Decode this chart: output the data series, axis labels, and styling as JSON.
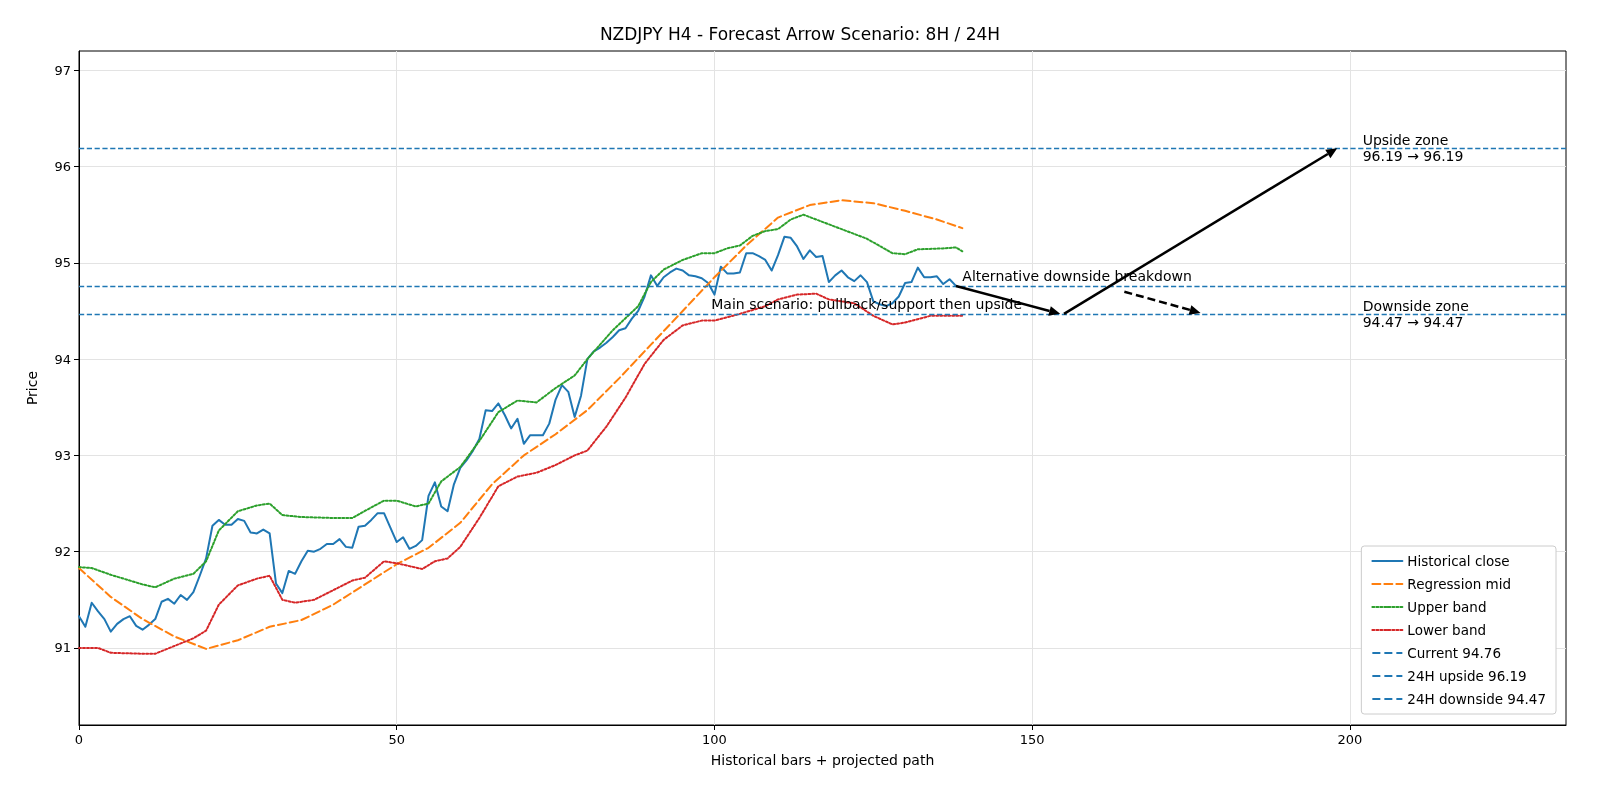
{
  "chart_data": {
    "type": "line",
    "title": "NZDJPY H4 - Forecast Arrow Scenario: 8H / 24H",
    "xlabel": "Historical bars + projected path",
    "ylabel": "Price",
    "xlim": [
      0,
      234
    ],
    "xticks": [
      0,
      50,
      100,
      150,
      200
    ],
    "ylim": [
      90.2,
      97.2
    ],
    "yticks": [
      91,
      92,
      93,
      94,
      95,
      96,
      97
    ],
    "grid": true,
    "legend": "bottom right",
    "marker": "none",
    "series": [
      {
        "name": "Historical close",
        "color": "#1f77b4",
        "line_style": "solid",
        "x": [
          0,
          1,
          2,
          3,
          4,
          5,
          6,
          7,
          8,
          9,
          10,
          11,
          12,
          13,
          14,
          15,
          16,
          17,
          18,
          19,
          20,
          21,
          22,
          23,
          24,
          25,
          26,
          27,
          28,
          29,
          30,
          31,
          32,
          33,
          34,
          35,
          36,
          37,
          38,
          39,
          40,
          41,
          42,
          43,
          44,
          45,
          46,
          47,
          48,
          49,
          50,
          51,
          52,
          53,
          54,
          55,
          56,
          57,
          58,
          59,
          60,
          61,
          62,
          63,
          64,
          65,
          66,
          67,
          68,
          69,
          70,
          71,
          72,
          73,
          74,
          75,
          76,
          77,
          78,
          79,
          80,
          81,
          82,
          83,
          84,
          85,
          86,
          87,
          88,
          89,
          90,
          91,
          92,
          93,
          94,
          95,
          96,
          97,
          98,
          99,
          100,
          101,
          102,
          103,
          104,
          105,
          106,
          107,
          108,
          109,
          110,
          111,
          112,
          113,
          114,
          115,
          116,
          117,
          118,
          119,
          120,
          121,
          122,
          123,
          124,
          125,
          126,
          127,
          128,
          129,
          130,
          131,
          132,
          133,
          134,
          135,
          136,
          137,
          138
        ],
        "values": [
          91.33,
          91.22,
          91.47,
          91.38,
          91.3,
          91.17,
          91.25,
          91.3,
          91.33,
          91.23,
          91.19,
          91.24,
          91.3,
          91.48,
          91.51,
          91.46,
          91.55,
          91.5,
          91.58,
          91.75,
          91.93,
          92.27,
          92.33,
          92.28,
          92.28,
          92.34,
          92.32,
          92.2,
          92.19,
          92.23,
          92.19,
          91.67,
          91.57,
          91.8,
          91.77,
          91.9,
          92.01,
          92.0,
          92.03,
          92.08,
          92.08,
          92.13,
          92.05,
          92.04,
          92.26,
          92.27,
          92.33,
          92.4,
          92.4,
          92.25,
          92.1,
          92.15,
          92.03,
          92.06,
          92.12,
          92.58,
          92.72,
          92.47,
          92.42,
          92.7,
          92.87,
          92.95,
          93.05,
          93.17,
          93.47,
          93.46,
          93.54,
          93.42,
          93.28,
          93.38,
          93.12,
          93.21,
          93.21,
          93.21,
          93.33,
          93.58,
          93.73,
          93.66,
          93.4,
          93.62,
          94.0,
          94.08,
          94.12,
          94.17,
          94.23,
          94.3,
          94.32,
          94.42,
          94.5,
          94.65,
          94.87,
          94.76,
          94.85,
          94.9,
          94.94,
          94.92,
          94.87,
          94.86,
          94.84,
          94.79,
          94.67,
          94.96,
          94.89,
          94.89,
          94.9,
          95.1,
          95.1,
          95.07,
          95.03,
          94.92,
          95.08,
          95.27,
          95.26,
          95.17,
          95.04,
          95.13,
          95.06,
          95.07,
          94.8,
          94.87,
          94.92,
          94.85,
          94.81,
          94.87,
          94.8,
          94.6,
          94.57,
          94.55,
          94.58,
          94.65,
          94.79,
          94.8,
          94.95,
          94.85,
          94.85,
          94.86,
          94.78,
          94.83,
          94.76
        ]
      },
      {
        "name": "Regression mid",
        "color": "#ff7f0e",
        "line_style": "dashed",
        "x": [
          0,
          5,
          10,
          15,
          20,
          25,
          30,
          35,
          40,
          45,
          50,
          55,
          60,
          65,
          70,
          75,
          80,
          85,
          90,
          95,
          100,
          105,
          110,
          115,
          120,
          125,
          130,
          135,
          139
        ],
        "values": [
          91.83,
          91.53,
          91.3,
          91.12,
          90.99,
          91.08,
          91.22,
          91.29,
          91.45,
          91.66,
          91.87,
          92.04,
          92.3,
          92.7,
          93.0,
          93.22,
          93.47,
          93.8,
          94.15,
          94.5,
          94.85,
          95.18,
          95.47,
          95.6,
          95.65,
          95.62,
          95.54,
          95.45,
          95.36
        ]
      },
      {
        "name": "Upper band",
        "color": "#2ca02c",
        "line_style": "dotted",
        "x": [
          0,
          2,
          5,
          10,
          12,
          15,
          18,
          20,
          22,
          25,
          28,
          30,
          32,
          35,
          40,
          43,
          46,
          48,
          50,
          53,
          55,
          57,
          60,
          63,
          66,
          69,
          72,
          75,
          78,
          80,
          84,
          88,
          90,
          92,
          95,
          98,
          100,
          102,
          104,
          106,
          108,
          110,
          112,
          114,
          116,
          120,
          124,
          128,
          130,
          132,
          136,
          138,
          139
        ],
        "values": [
          91.84,
          91.83,
          91.76,
          91.66,
          91.63,
          91.72,
          91.77,
          91.9,
          92.22,
          92.42,
          92.48,
          92.5,
          92.38,
          92.36,
          92.35,
          92.35,
          92.46,
          92.53,
          92.53,
          92.47,
          92.5,
          92.73,
          92.88,
          93.15,
          93.45,
          93.57,
          93.55,
          93.7,
          93.83,
          94.0,
          94.3,
          94.55,
          94.8,
          94.93,
          95.03,
          95.1,
          95.1,
          95.15,
          95.18,
          95.28,
          95.33,
          95.35,
          95.45,
          95.5,
          95.45,
          95.35,
          95.25,
          95.1,
          95.09,
          95.14,
          95.15,
          95.16,
          95.12
        ]
      },
      {
        "name": "Lower band",
        "color": "#d62728",
        "line_style": "dotted",
        "x": [
          0,
          3,
          5,
          10,
          12,
          15,
          18,
          20,
          22,
          25,
          28,
          30,
          32,
          34,
          37,
          40,
          43,
          45,
          48,
          50,
          52,
          54,
          56,
          58,
          60,
          63,
          66,
          69,
          72,
          75,
          78,
          80,
          83,
          86,
          89,
          92,
          95,
          98,
          100,
          104,
          108,
          110,
          113,
          116,
          118,
          122,
          125,
          128,
          130,
          134,
          136,
          139
        ],
        "values": [
          91.0,
          91.0,
          90.95,
          90.94,
          90.94,
          91.02,
          91.1,
          91.18,
          91.45,
          91.65,
          91.72,
          91.75,
          91.5,
          91.47,
          91.5,
          91.6,
          91.7,
          91.73,
          91.9,
          91.88,
          91.85,
          91.82,
          91.9,
          91.93,
          92.05,
          92.35,
          92.68,
          92.78,
          92.82,
          92.9,
          93.0,
          93.05,
          93.3,
          93.6,
          93.95,
          94.2,
          94.35,
          94.4,
          94.4,
          94.47,
          94.55,
          94.62,
          94.67,
          94.68,
          94.62,
          94.58,
          94.45,
          94.36,
          94.38,
          94.45,
          94.45,
          94.45
        ]
      }
    ],
    "ref_lines": [
      {
        "axis": "y",
        "value": 94.76,
        "label": "Current 94.76",
        "color": "#1f77b4",
        "line_style": "dashed"
      },
      {
        "axis": "y",
        "value": 96.19,
        "label": "24H upside 96.19",
        "color": "#1f77b4",
        "line_style": "dashed"
      },
      {
        "axis": "y",
        "value": 94.47,
        "label": "24H downside 94.47",
        "color": "#1f77b4",
        "line_style": "dashed"
      }
    ],
    "annotations": [
      {
        "text": "Alternative downside breakdown",
        "x": 139,
        "y": 94.76
      },
      {
        "text": "Main scenario: pullback/support then upside",
        "x": 99.5,
        "y": 94.47
      },
      {
        "text": "Upside zone\n96.19 → 96.19",
        "x": 202,
        "y": 96.19
      },
      {
        "text": "Downside zone\n94.47 → 94.47",
        "x": 202,
        "y": 94.47
      }
    ]
  }
}
